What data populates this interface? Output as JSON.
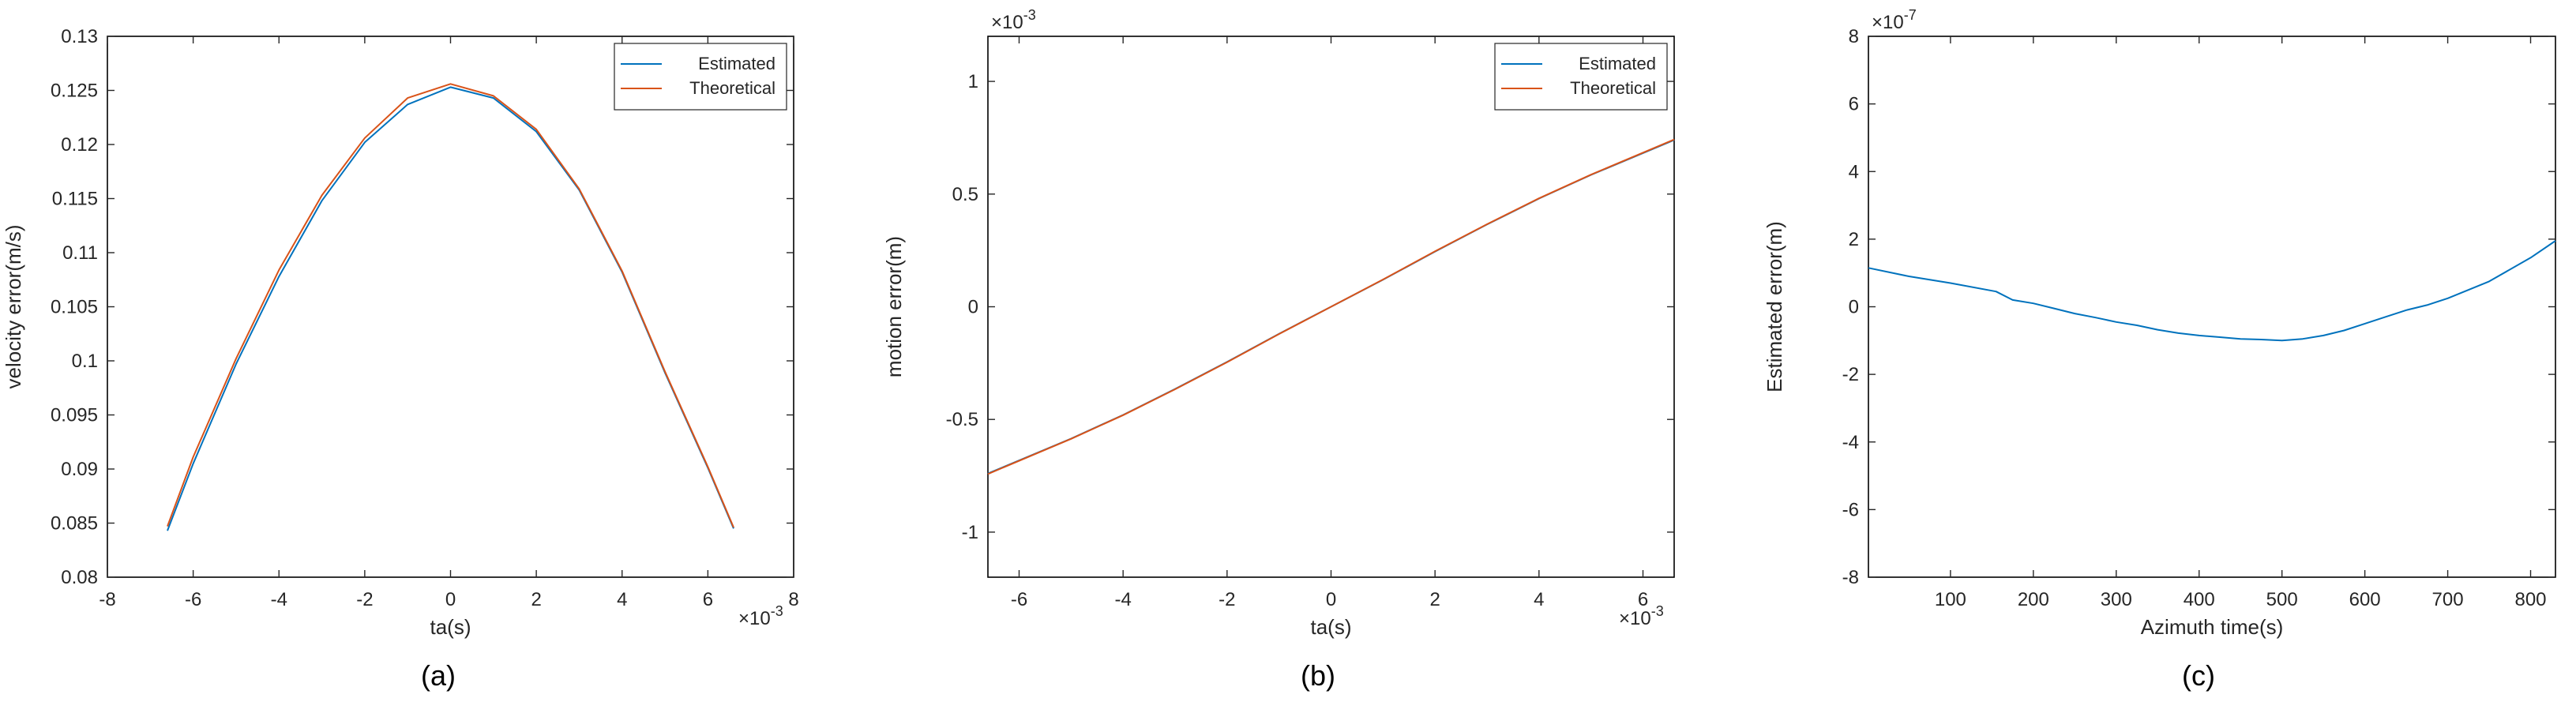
{
  "colors": {
    "estimated": "#0072BD",
    "theoretical": "#D95319",
    "axis": "#262626",
    "frame": "#000000"
  },
  "chart_data": [
    {
      "id": "a",
      "type": "line",
      "caption": "(a)",
      "xlabel": "ta(s)",
      "ylabel": "velocity error(m/s)",
      "xlim": [
        -8,
        8
      ],
      "ylim": [
        0.08,
        0.13
      ],
      "xticks": [
        "-8",
        "-6",
        "-4",
        "-2",
        "0",
        "2",
        "4",
        "6",
        "8"
      ],
      "yticks": [
        "0.08",
        "0.085",
        "0.09",
        "0.095",
        "0.1",
        "0.105",
        "0.11",
        "0.115",
        "0.12",
        "0.125",
        "0.13"
      ],
      "x_multiplier": "×10",
      "x_multiplier_exp": "-3",
      "legend_position": "top-right",
      "series": [
        {
          "name": "Estimated",
          "color": "#0072BD",
          "x": [
            -6.6,
            -6,
            -5,
            -4,
            -3,
            -2,
            -1,
            0,
            1,
            2,
            3,
            4,
            5,
            6,
            6.6
          ],
          "y": [
            0.0843,
            0.0905,
            0.0997,
            0.1078,
            0.1148,
            0.1202,
            0.1237,
            0.1253,
            0.1243,
            0.1212,
            0.1158,
            0.1082,
            0.0989,
            0.0901,
            0.0845
          ]
        },
        {
          "name": "Theoretical",
          "color": "#D95319",
          "x": [
            -6.6,
            -6,
            -5,
            -4,
            -3,
            -2,
            -1,
            0,
            1,
            2,
            3,
            4,
            5,
            6,
            6.6
          ],
          "y": [
            0.0847,
            0.0911,
            0.1002,
            0.1084,
            0.1153,
            0.1206,
            0.1243,
            0.1256,
            0.1245,
            0.1214,
            0.1159,
            0.1083,
            0.099,
            0.0902,
            0.0846
          ]
        }
      ]
    },
    {
      "id": "b",
      "type": "line",
      "caption": "(b)",
      "xlabel": "ta(s)",
      "ylabel": "motion error(m)",
      "xlim": [
        -6.6,
        6.6
      ],
      "ylim": [
        -1.2,
        1.2
      ],
      "xticks": [
        "-6",
        "-4",
        "-2",
        "0",
        "2",
        "4",
        "6"
      ],
      "yticks": [
        "-1",
        "-0.5",
        "0",
        "0.5",
        "1"
      ],
      "x_multiplier": "×10",
      "x_multiplier_exp": "-3",
      "y_multiplier": "×10",
      "y_multiplier_exp": "-3",
      "legend_position": "top-right",
      "series": [
        {
          "name": "Estimated",
          "color": "#0072BD",
          "x": [
            -6.6,
            -5,
            -4,
            -3,
            -2,
            -1,
            0,
            1,
            2,
            3,
            4,
            5,
            6.6
          ],
          "y": [
            -0.74,
            -0.585,
            -0.48,
            -0.365,
            -0.245,
            -0.12,
            0.0,
            0.12,
            0.245,
            0.365,
            0.48,
            0.585,
            0.74
          ]
        },
        {
          "name": "Theoretical",
          "color": "#D95319",
          "x": [
            -6.6,
            -5,
            -4,
            -3,
            -2,
            -1,
            0,
            1,
            2,
            3,
            4,
            5,
            6.6
          ],
          "y": [
            -0.742,
            -0.586,
            -0.481,
            -0.366,
            -0.246,
            -0.121,
            0.0,
            0.121,
            0.246,
            0.366,
            0.481,
            0.586,
            0.742
          ]
        }
      ]
    },
    {
      "id": "c",
      "type": "line",
      "caption": "(c)",
      "xlabel": "Azimuth time(s)",
      "ylabel": "Estimated error(m)",
      "xlim": [
        1,
        830
      ],
      "ylim": [
        -8,
        8
      ],
      "xticks": [
        "100",
        "200",
        "300",
        "400",
        "500",
        "600",
        "700",
        "800"
      ],
      "yticks": [
        "-8",
        "-6",
        "-4",
        "-2",
        "0",
        "2",
        "4",
        "6",
        "8"
      ],
      "y_multiplier": "×10",
      "y_multiplier_exp": "-7",
      "series": [
        {
          "name": "",
          "color": "#0072BD",
          "x": [
            1,
            50,
            100,
            155,
            175,
            200,
            225,
            250,
            275,
            300,
            325,
            350,
            375,
            400,
            425,
            450,
            475,
            500,
            525,
            550,
            575,
            600,
            625,
            650,
            675,
            700,
            750,
            800,
            830
          ],
          "y": [
            1.15,
            0.9,
            0.7,
            0.45,
            0.2,
            0.1,
            -0.05,
            -0.2,
            -0.32,
            -0.45,
            -0.55,
            -0.68,
            -0.78,
            -0.85,
            -0.9,
            -0.95,
            -0.97,
            -1.0,
            -0.95,
            -0.85,
            -0.7,
            -0.5,
            -0.3,
            -0.1,
            0.05,
            0.25,
            0.75,
            1.45,
            1.95
          ]
        }
      ]
    }
  ]
}
